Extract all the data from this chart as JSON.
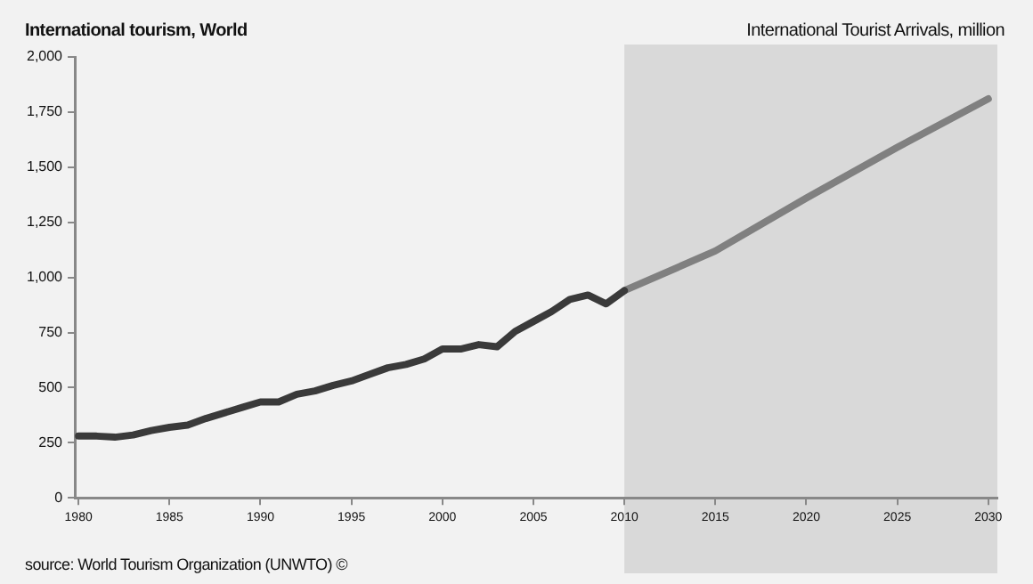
{
  "chart_data": {
    "type": "line",
    "title": "International tourism, World",
    "ylabel": "International Tourist Arrivals, million",
    "annotations": [
      "source: World Tourism Organization (UNWTO) ©"
    ],
    "series": [
      {
        "color": "#3a3a3a",
        "x": [
          1980,
          1981,
          1982,
          1983,
          1984,
          1985,
          1986,
          1987,
          1988,
          1989,
          1990,
          1991,
          1992,
          1993,
          1994,
          1995,
          1996,
          1997,
          1998,
          1999,
          2000,
          2001,
          2002,
          2003,
          2004,
          2005,
          2006,
          2007,
          2008,
          2009,
          2010
        ],
        "values": [
          280,
          280,
          275,
          285,
          305,
          320,
          330,
          360,
          385,
          410,
          435,
          435,
          470,
          485,
          510,
          530,
          560,
          590,
          605,
          630,
          675,
          675,
          695,
          685,
          755,
          800,
          845,
          900,
          920,
          880,
          940
        ]
      },
      {
        "color": "#808080",
        "x": [
          2010,
          2015,
          2020,
          2025,
          2030
        ],
        "values": [
          940,
          1120,
          1360,
          1590,
          1810
        ]
      }
    ],
    "xlim": [
      1979.8,
      2030.5
    ],
    "xticks": [
      1980,
      1985,
      1990,
      1995,
      2000,
      2005,
      2010,
      2015,
      2020,
      2025,
      2030
    ],
    "ylim": [
      0,
      2000
    ],
    "yticks": [
      0,
      250,
      500,
      750,
      {
        "value": 1000,
        "label": "1,000"
      },
      {
        "value": 1250,
        "label": "1,250"
      },
      {
        "value": 1500,
        "label": "1,500"
      },
      {
        "value": 1750,
        "label": "1,750"
      },
      {
        "value": 2000,
        "label": "2,000"
      }
    ],
    "bands": [
      {
        "axis": "x",
        "from": 2010,
        "to": 2030.5,
        "color": "#d9d9d9"
      }
    ],
    "grid": false,
    "legend": false,
    "marker": "none",
    "line_style": "solid"
  }
}
